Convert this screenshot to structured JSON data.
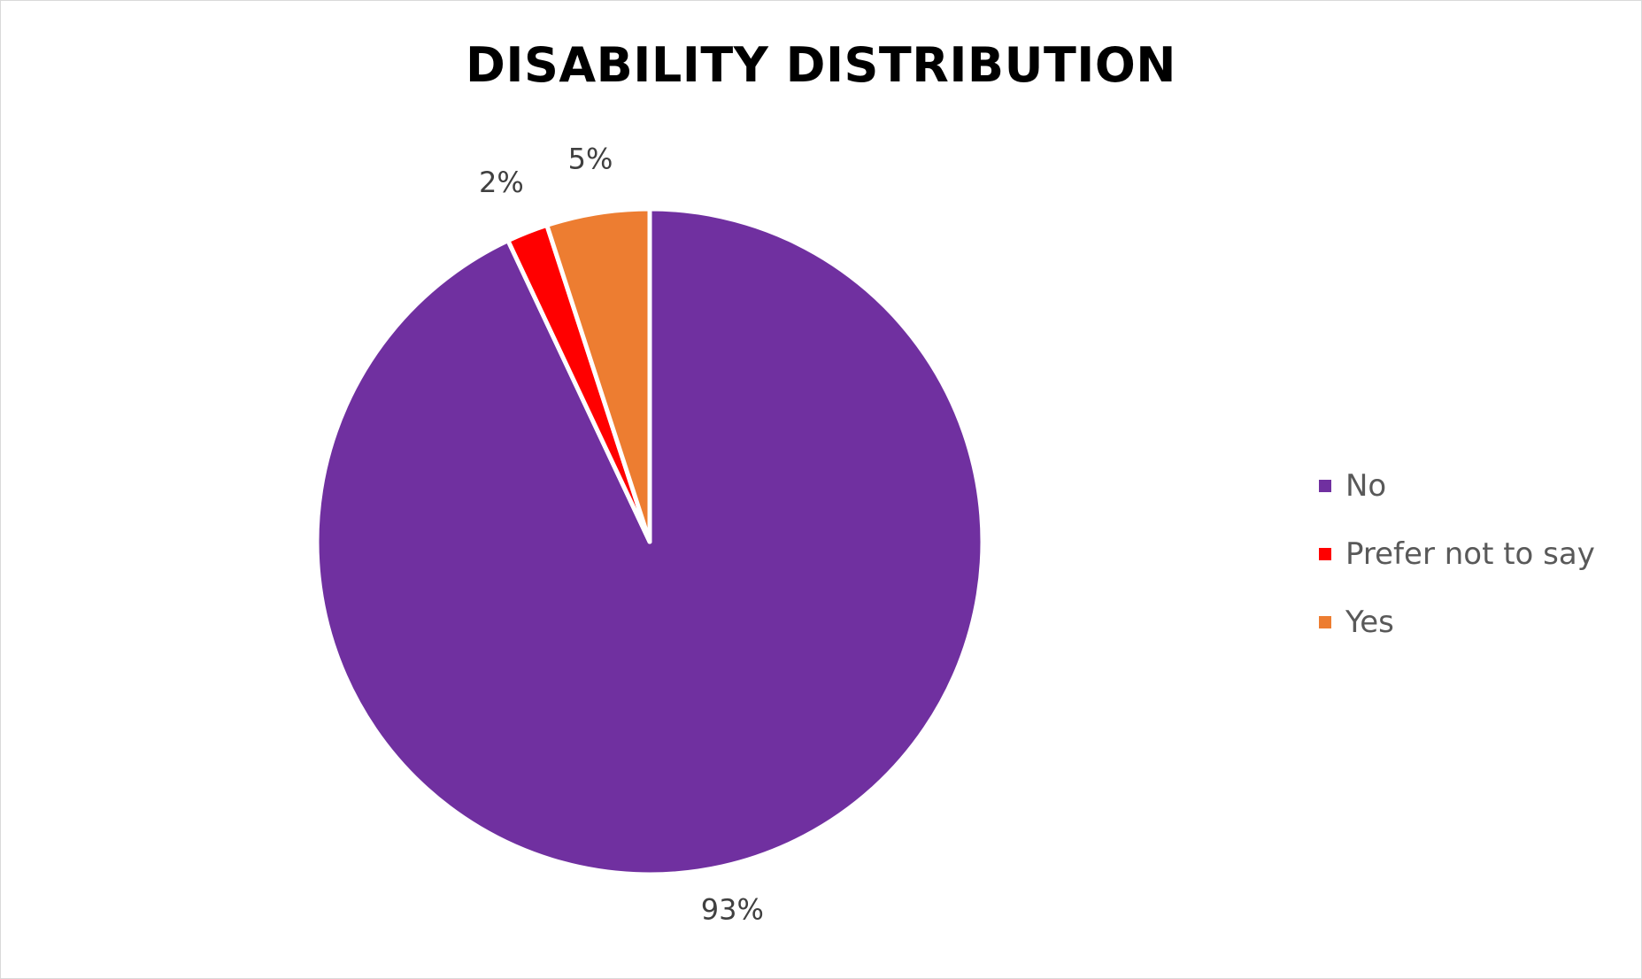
{
  "chart_data": {
    "type": "pie",
    "title": "DISABILITY DISTRIBUTION",
    "categories": [
      "No",
      "Prefer not to say",
      "Yes"
    ],
    "values": [
      93,
      2,
      5
    ],
    "data_labels": [
      "93%",
      "2%",
      "5%"
    ],
    "colors": [
      "#7030a0",
      "#ff0000",
      "#ed7d31"
    ],
    "start_angle_deg": 0,
    "direction": "clockwise",
    "legend_position": "right"
  }
}
